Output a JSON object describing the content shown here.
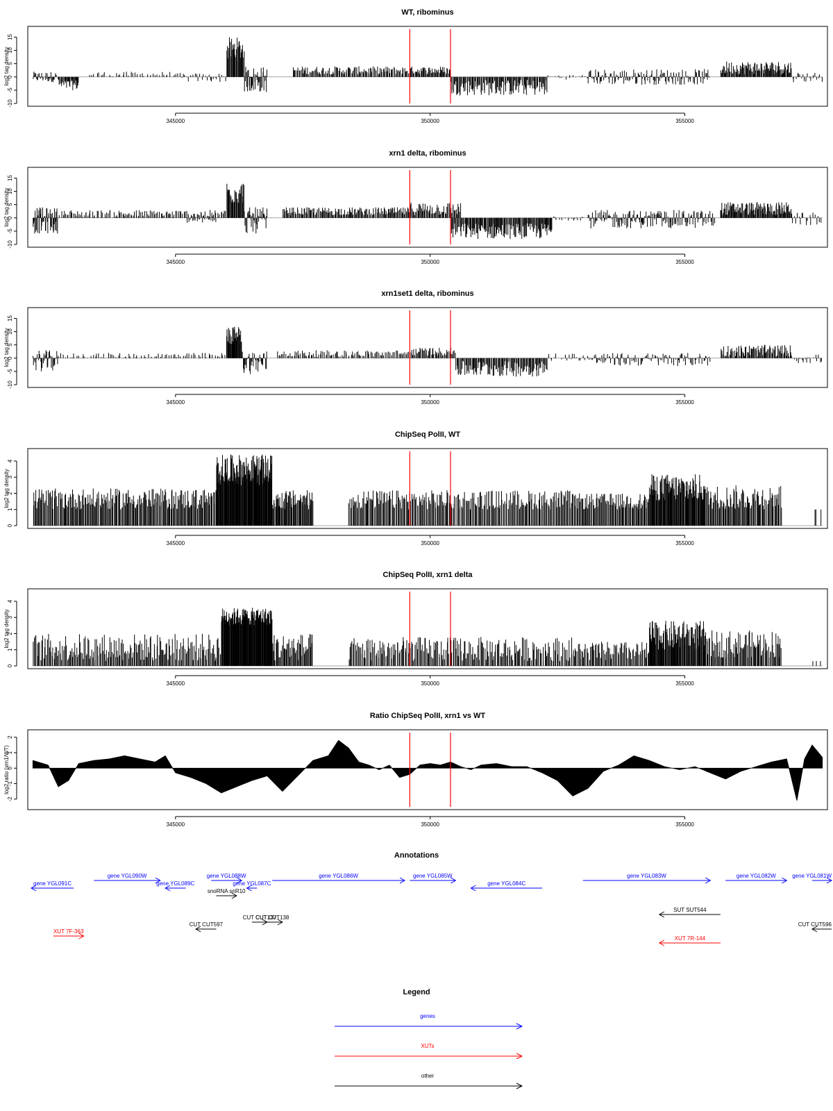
{
  "chart_data": [
    {
      "type": "bar",
      "title": "WT, ribominus",
      "ylabel": "log2 tag density",
      "ylim": [
        -10,
        18
      ],
      "yticks": [
        -10,
        -5,
        0,
        5,
        10,
        15
      ],
      "xlim": [
        342100,
        357800
      ],
      "xticks": [
        345000,
        350000,
        355000
      ],
      "markers": [
        349600,
        350400
      ],
      "segments": [
        {
          "x": [
            342200,
            342700
          ],
          "y": [
            -2,
            2
          ],
          "n": 40
        },
        {
          "x": [
            342700,
            343100
          ],
          "y": [
            -5,
            -1
          ],
          "n": 30
        },
        {
          "x": [
            343300,
            345000
          ],
          "y": [
            0,
            2
          ],
          "n": 40
        },
        {
          "x": [
            345000,
            346000
          ],
          "y": [
            -2,
            1.5
          ],
          "n": 30
        },
        {
          "x": [
            346000,
            346350
          ],
          "y": [
            6,
            15
          ],
          "n": 30
        },
        {
          "x": [
            346350,
            346800
          ],
          "y": [
            -6,
            4
          ],
          "n": 40
        },
        {
          "x": [
            347300,
            349600
          ],
          "y": [
            1,
            4
          ],
          "n": 120
        },
        {
          "x": [
            349600,
            350400
          ],
          "y": [
            1,
            4
          ],
          "n": 50
        },
        {
          "x": [
            350400,
            352300
          ],
          "y": [
            -7,
            -1
          ],
          "n": 120
        },
        {
          "x": [
            352300,
            353100
          ],
          "y": [
            -1,
            1
          ],
          "n": 20
        },
        {
          "x": [
            353100,
            355500
          ],
          "y": [
            -3,
            3
          ],
          "n": 140
        },
        {
          "x": [
            355700,
            357100
          ],
          "y": [
            1,
            6
          ],
          "n": 100
        },
        {
          "x": [
            357100,
            357700
          ],
          "y": [
            -2,
            2
          ],
          "n": 20
        }
      ]
    },
    {
      "type": "bar",
      "title": "xrn1 delta, ribominus",
      "ylabel": "log2 tag density",
      "ylim": [
        -10,
        18
      ],
      "yticks": [
        -10,
        -5,
        0,
        5,
        10,
        15
      ],
      "xlim": [
        342100,
        357800
      ],
      "xticks": [
        345000,
        350000,
        355000
      ],
      "markers": [
        349600,
        350400
      ],
      "segments": [
        {
          "x": [
            342200,
            342700
          ],
          "y": [
            -6,
            4
          ],
          "n": 50
        },
        {
          "x": [
            342700,
            346000
          ],
          "y": [
            0,
            3
          ],
          "n": 140
        },
        {
          "x": [
            345200,
            345800
          ],
          "y": [
            -2,
            0
          ],
          "n": 20
        },
        {
          "x": [
            346000,
            346350
          ],
          "y": [
            5,
            14
          ],
          "n": 30
        },
        {
          "x": [
            346350,
            346800
          ],
          "y": [
            -6,
            4
          ],
          "n": 40
        },
        {
          "x": [
            347100,
            349600
          ],
          "y": [
            1,
            4
          ],
          "n": 150
        },
        {
          "x": [
            349600,
            350600
          ],
          "y": [
            1,
            6
          ],
          "n": 60
        },
        {
          "x": [
            350400,
            352400
          ],
          "y": [
            -8,
            -2
          ],
          "n": 140
        },
        {
          "x": [
            352400,
            353100
          ],
          "y": [
            -1,
            1
          ],
          "n": 20
        },
        {
          "x": [
            353100,
            355600
          ],
          "y": [
            -4,
            3
          ],
          "n": 160
        },
        {
          "x": [
            355700,
            357100
          ],
          "y": [
            1,
            6
          ],
          "n": 110
        },
        {
          "x": [
            357100,
            357700
          ],
          "y": [
            -3,
            2
          ],
          "n": 20
        }
      ]
    },
    {
      "type": "bar",
      "title": "xrn1set1 delta, ribominus",
      "ylabel": "log2 tag density",
      "ylim": [
        -10,
        18
      ],
      "yticks": [
        -10,
        -5,
        0,
        5,
        10,
        15
      ],
      "xlim": [
        342100,
        357800
      ],
      "xticks": [
        345000,
        350000,
        355000
      ],
      "markers": [
        349600,
        350400
      ],
      "segments": [
        {
          "x": [
            342200,
            342700
          ],
          "y": [
            -5,
            3
          ],
          "n": 40
        },
        {
          "x": [
            342700,
            346000
          ],
          "y": [
            0,
            2
          ],
          "n": 80
        },
        {
          "x": [
            346000,
            346300
          ],
          "y": [
            5,
            12
          ],
          "n": 30
        },
        {
          "x": [
            346300,
            346800
          ],
          "y": [
            -6,
            3
          ],
          "n": 40
        },
        {
          "x": [
            347000,
            349600
          ],
          "y": [
            0.5,
            3
          ],
          "n": 100
        },
        {
          "x": [
            349600,
            350500
          ],
          "y": [
            1,
            4
          ],
          "n": 50
        },
        {
          "x": [
            350500,
            352300
          ],
          "y": [
            -7,
            -1
          ],
          "n": 110
        },
        {
          "x": [
            352300,
            353100
          ],
          "y": [
            -1,
            2
          ],
          "n": 20
        },
        {
          "x": [
            353100,
            355500
          ],
          "y": [
            -3,
            2
          ],
          "n": 120
        },
        {
          "x": [
            355700,
            357100
          ],
          "y": [
            0.5,
            5
          ],
          "n": 90
        },
        {
          "x": [
            357100,
            357700
          ],
          "y": [
            -2,
            1.5
          ],
          "n": 20
        }
      ]
    },
    {
      "type": "bar",
      "title": "ChipSeq PolII, WT",
      "ylabel": "log2 tag density",
      "ylim": [
        0,
        4.6
      ],
      "yticks": [
        0,
        1,
        2,
        3,
        4
      ],
      "xlim": [
        342100,
        357800
      ],
      "xticks": [
        345000,
        350000,
        355000
      ],
      "markers": [
        349600,
        350400
      ],
      "segments": [
        {
          "x": [
            342200,
            345800
          ],
          "y": [
            1,
            2.3
          ],
          "n": 220
        },
        {
          "x": [
            345800,
            346900
          ],
          "y": [
            2.5,
            4.4
          ],
          "n": 130
        },
        {
          "x": [
            346900,
            347700
          ],
          "y": [
            1,
            2.2
          ],
          "n": 60
        },
        {
          "x": [
            348400,
            352800
          ],
          "y": [
            1,
            2.2
          ],
          "n": 240
        },
        {
          "x": [
            352800,
            354300
          ],
          "y": [
            1,
            2
          ],
          "n": 90
        },
        {
          "x": [
            354300,
            355400
          ],
          "y": [
            1.5,
            3.2
          ],
          "n": 100
        },
        {
          "x": [
            355400,
            356900
          ],
          "y": [
            1,
            2.5
          ],
          "n": 90
        },
        {
          "x": [
            357500,
            357700
          ],
          "y": [
            1,
            1
          ],
          "n": 3
        }
      ]
    },
    {
      "type": "bar",
      "title": "ChipSeq PolII, xrn1 delta",
      "ylabel": "log2 tag density",
      "ylim": [
        0,
        4.6
      ],
      "yticks": [
        0,
        1,
        2,
        3,
        4
      ],
      "xlim": [
        342100,
        357800
      ],
      "xticks": [
        345000,
        350000,
        355000
      ],
      "markers": [
        349600,
        350400
      ],
      "segments": [
        {
          "x": [
            342200,
            345900
          ],
          "y": [
            0.3,
            2
          ],
          "n": 200
        },
        {
          "x": [
            345900,
            346900
          ],
          "y": [
            2.5,
            3.6
          ],
          "n": 120
        },
        {
          "x": [
            346900,
            347700
          ],
          "y": [
            0.3,
            2
          ],
          "n": 50
        },
        {
          "x": [
            348400,
            352800
          ],
          "y": [
            0.3,
            1.8
          ],
          "n": 220
        },
        {
          "x": [
            352800,
            354300
          ],
          "y": [
            0.3,
            1.5
          ],
          "n": 80
        },
        {
          "x": [
            354300,
            355400
          ],
          "y": [
            1,
            2.8
          ],
          "n": 100
        },
        {
          "x": [
            355400,
            356900
          ],
          "y": [
            0.5,
            2.2
          ],
          "n": 90
        },
        {
          "x": [
            357500,
            357700
          ],
          "y": [
            0.3,
            0.3
          ],
          "n": 3
        }
      ]
    },
    {
      "type": "area",
      "title": "Ratio ChipSeq PolII, xrn1 vs WT",
      "ylabel": "log2 ratio (xrn1/WT)",
      "ylim": [
        -2.5,
        2.3
      ],
      "yticks": [
        -2,
        -1,
        0,
        1,
        2
      ],
      "xlim": [
        342100,
        357800
      ],
      "xticks": [
        345000,
        350000,
        355000
      ],
      "markers": [
        349600,
        350400
      ],
      "x": [
        342200,
        342500,
        342700,
        342900,
        343100,
        343400,
        343700,
        344000,
        344300,
        344600,
        344800,
        345000,
        345300,
        345600,
        345900,
        346200,
        346500,
        346800,
        347100,
        347400,
        347700,
        348000,
        348200,
        348400,
        348600,
        348800,
        349000,
        349200,
        349400,
        349600,
        349800,
        350000,
        350200,
        350400,
        350600,
        350800,
        351000,
        351300,
        351600,
        351900,
        352200,
        352500,
        352800,
        353100,
        353400,
        353700,
        354000,
        354300,
        354600,
        354900,
        355200,
        355500,
        355800,
        356100,
        356400,
        356700,
        357000,
        357200,
        357350,
        357500,
        357700
      ],
      "y": [
        0.5,
        0.2,
        -1.2,
        -0.8,
        0.3,
        0.5,
        0.6,
        0.8,
        0.6,
        0.4,
        0.8,
        -0.3,
        -0.6,
        -1.0,
        -1.6,
        -1.2,
        -0.8,
        -0.5,
        -1.5,
        -0.5,
        0.5,
        0.8,
        1.8,
        1.3,
        0.4,
        0.2,
        -0.1,
        0.2,
        -0.6,
        -0.4,
        0.2,
        0.3,
        0.2,
        0.4,
        0.1,
        -0.1,
        0.2,
        0.3,
        0.1,
        0.1,
        -0.3,
        -0.8,
        -1.8,
        -1.3,
        -0.2,
        0.2,
        0.8,
        0.5,
        0.1,
        -0.1,
        0.1,
        -0.3,
        -0.7,
        -0.2,
        0.1,
        0.4,
        0.6,
        -2.1,
        0.6,
        1.5,
        0.7
      ]
    }
  ],
  "annotations": {
    "title": "Annotations",
    "features": [
      {
        "label": "gene YGL091C",
        "start": 343000,
        "end": 341600,
        "row": 2,
        "color": "#0000ff"
      },
      {
        "label": "gene YGL090W",
        "start": 343400,
        "end": 344700,
        "row": 1,
        "color": "#0000ff"
      },
      {
        "label": "gene YGL089C",
        "start": 345200,
        "end": 344800,
        "row": 2,
        "color": "#0000ff"
      },
      {
        "label": "gene YGL088W",
        "start": 345700,
        "end": 346300,
        "row": 1,
        "color": "#0000ff"
      },
      {
        "label": "gene YGL087C",
        "start": 346600,
        "end": 346400,
        "row": 2,
        "color": "#0000ff"
      },
      {
        "label": "gene YGL086W",
        "start": 346900,
        "end": 349500,
        "row": 1,
        "color": "#0000ff"
      },
      {
        "label": "gene YGL085W",
        "start": 349600,
        "end": 350500,
        "row": 1,
        "color": "#0000ff"
      },
      {
        "label": "gene YGL084C",
        "start": 352200,
        "end": 350800,
        "row": 2,
        "color": "#0000ff"
      },
      {
        "label": "gene YGL083W",
        "start": 353000,
        "end": 355500,
        "row": 1,
        "color": "#0000ff"
      },
      {
        "label": "gene YGL082W",
        "start": 355800,
        "end": 357000,
        "row": 1,
        "color": "#0000ff"
      },
      {
        "label": "gene YGL081W",
        "start": 357500,
        "end": 358300,
        "row": 1,
        "color": "#0000ff"
      },
      {
        "label": "snoRNA snR10",
        "start": 345800,
        "end": 346200,
        "row": 3,
        "color": "#000000"
      },
      {
        "label": "CUT CUT138",
        "start": 346700,
        "end": 347100,
        "row": 5,
        "color": "#000000"
      },
      {
        "label": "CUT CUT137",
        "start": 346500,
        "end": 346800,
        "row": 5,
        "color": "#000000"
      },
      {
        "label": "CUT CUT597",
        "start": 345800,
        "end": 345400,
        "row": 6,
        "color": "#000000"
      },
      {
        "label": "SUT SUT544",
        "start": 355700,
        "end": 354500,
        "row": 4,
        "color": "#000000"
      },
      {
        "label": "CUT CUT596",
        "start": 358300,
        "end": 357500,
        "row": 6,
        "color": "#000000"
      },
      {
        "label": "XUT 7F-363",
        "start": 342600,
        "end": 343200,
        "row": 7,
        "color": "#ff0000"
      },
      {
        "label": "XUT 7R-144",
        "start": 355700,
        "end": 354500,
        "row": 8,
        "color": "#ff0000"
      }
    ]
  },
  "legend": {
    "title": "Legend",
    "items": [
      {
        "label": "genes",
        "color": "#0000ff"
      },
      {
        "label": "XUTs",
        "color": "#ff0000"
      },
      {
        "label": "other",
        "color": "#000000"
      }
    ]
  }
}
